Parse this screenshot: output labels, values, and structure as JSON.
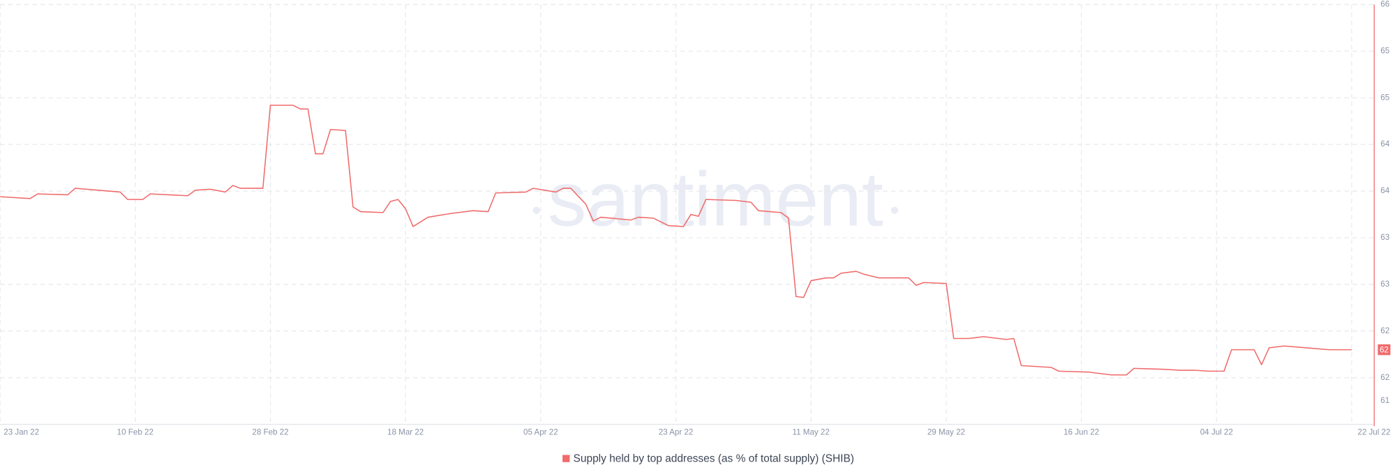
{
  "chart_data": {
    "type": "line",
    "watermark": "santiment",
    "x": [
      "2022-01-23",
      "2022-01-27",
      "2022-01-28",
      "2022-02-01",
      "2022-02-02",
      "2022-02-08",
      "2022-02-09",
      "2022-02-11",
      "2022-02-12",
      "2022-02-17",
      "2022-02-18",
      "2022-02-20",
      "2022-02-22",
      "2022-02-23",
      "2022-02-24",
      "2022-02-27",
      "2022-02-28",
      "2022-03-03",
      "2022-03-04",
      "2022-03-05",
      "2022-03-06",
      "2022-03-07",
      "2022-03-08",
      "2022-03-10",
      "2022-03-11",
      "2022-03-12",
      "2022-03-15",
      "2022-03-16",
      "2022-03-17",
      "2022-03-18",
      "2022-03-19",
      "2022-03-21",
      "2022-03-24",
      "2022-03-27",
      "2022-03-29",
      "2022-03-30",
      "2022-04-03",
      "2022-04-04",
      "2022-04-07",
      "2022-04-08",
      "2022-04-09",
      "2022-04-11",
      "2022-04-12",
      "2022-04-13",
      "2022-04-17",
      "2022-04-18",
      "2022-04-20",
      "2022-04-22",
      "2022-04-24",
      "2022-04-25",
      "2022-04-26",
      "2022-04-27",
      "2022-05-01",
      "2022-05-03",
      "2022-05-04",
      "2022-05-07",
      "2022-05-08",
      "2022-05-09",
      "2022-05-10",
      "2022-05-11",
      "2022-05-13",
      "2022-05-14",
      "2022-05-15",
      "2022-05-17",
      "2022-05-18",
      "2022-05-20",
      "2022-05-24",
      "2022-05-25",
      "2022-05-26",
      "2022-05-29",
      "2022-05-30",
      "2022-06-01",
      "2022-06-03",
      "2022-06-06",
      "2022-06-07",
      "2022-06-08",
      "2022-06-12",
      "2022-06-13",
      "2022-06-17",
      "2022-06-20",
      "2022-06-22",
      "2022-06-23",
      "2022-06-27",
      "2022-06-29",
      "2022-07-01",
      "2022-07-03",
      "2022-07-05",
      "2022-07-06",
      "2022-07-09",
      "2022-07-10",
      "2022-07-11",
      "2022-07-13",
      "2022-07-16",
      "2022-07-19",
      "2022-07-22"
    ],
    "series": [
      {
        "name": "Supply held by top addresses (as % of total supply) (SHIB)",
        "color": "#f06b6b",
        "values": [
          63.44,
          63.42,
          63.47,
          63.46,
          63.53,
          63.49,
          63.41,
          63.41,
          63.47,
          63.45,
          63.51,
          63.52,
          63.49,
          63.56,
          63.53,
          63.53,
          64.42,
          64.42,
          64.38,
          64.38,
          63.9,
          63.9,
          64.16,
          64.15,
          63.33,
          63.28,
          63.27,
          63.39,
          63.41,
          63.31,
          63.12,
          63.22,
          63.26,
          63.29,
          63.28,
          63.48,
          63.49,
          63.53,
          63.49,
          63.53,
          63.53,
          63.36,
          63.18,
          63.22,
          63.19,
          63.22,
          63.21,
          63.13,
          63.12,
          63.25,
          63.23,
          63.41,
          63.4,
          63.38,
          63.29,
          63.27,
          63.21,
          62.37,
          62.36,
          62.54,
          62.57,
          62.57,
          62.62,
          62.64,
          62.61,
          62.57,
          62.57,
          62.49,
          62.52,
          62.51,
          61.92,
          61.92,
          61.94,
          61.91,
          61.92,
          61.63,
          61.61,
          61.57,
          61.56,
          61.53,
          61.53,
          61.6,
          61.59,
          61.58,
          61.58,
          61.57,
          61.57,
          61.8,
          61.8,
          61.64,
          61.82,
          61.84,
          61.82,
          61.8,
          61.8
        ],
        "last_label": "62"
      }
    ],
    "xlim": [
      "2022-01-23",
      "2022-07-25"
    ],
    "xticks": [
      {
        "value": "2022-01-23",
        "label": "23 Jan 22"
      },
      {
        "value": "2022-02-10",
        "label": "10 Feb 22"
      },
      {
        "value": "2022-02-28",
        "label": "28 Feb 22"
      },
      {
        "value": "2022-03-18",
        "label": "18 Mar 22"
      },
      {
        "value": "2022-04-05",
        "label": "05 Apr 22"
      },
      {
        "value": "2022-04-23",
        "label": "23 Apr 22"
      },
      {
        "value": "2022-05-11",
        "label": "11 May 22"
      },
      {
        "value": "2022-05-29",
        "label": "29 May 22"
      },
      {
        "value": "2022-06-16",
        "label": "16 Jun 22"
      },
      {
        "value": "2022-07-04",
        "label": "04 Jul 22"
      },
      {
        "value": "2022-07-22",
        "label": "22 Jul 22"
      }
    ],
    "ylim": [
      61,
      65.5
    ],
    "yticks": [
      61,
      {
        "value": 61.5,
        "label": "62"
      },
      62,
      {
        "value": 62.5,
        "label": "63"
      },
      63,
      {
        "value": 63.5,
        "label": "64"
      },
      64,
      {
        "value": 64.5,
        "label": "65"
      },
      65,
      {
        "value": 65.5,
        "label": "66"
      }
    ],
    "grid": true
  }
}
